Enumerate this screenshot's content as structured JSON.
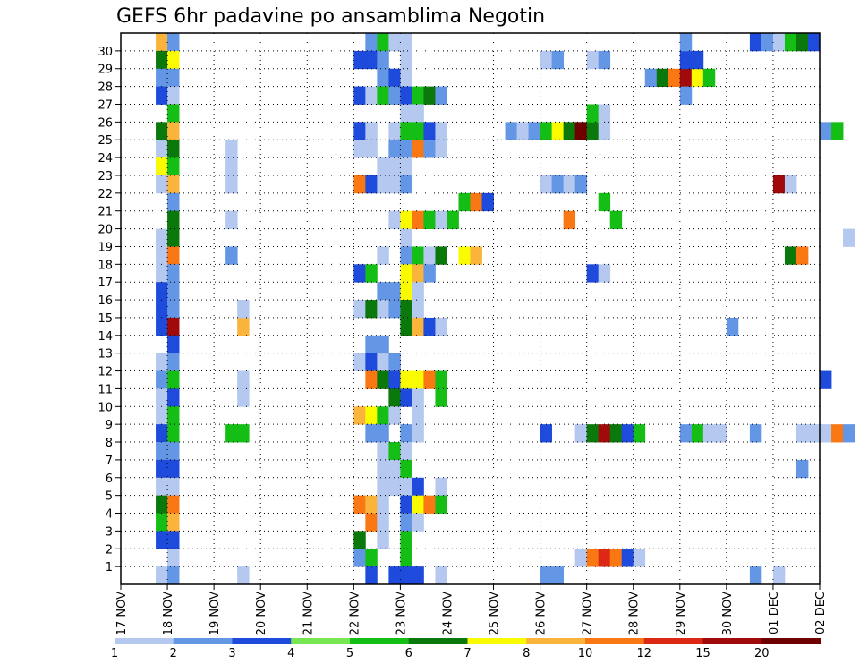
{
  "chart_data": {
    "type": "heatmap",
    "title": "GEFS 6hr padavine po ansamblima Negotin",
    "y_ticks": [
      "1",
      "2",
      "3",
      "4",
      "5",
      "6",
      "7",
      "8",
      "9",
      "10",
      "11",
      "12",
      "13",
      "14",
      "15",
      "16",
      "17",
      "18",
      "19",
      "20",
      "21",
      "22",
      "23",
      "24",
      "25",
      "26",
      "27",
      "28",
      "29",
      "30"
    ],
    "x_ticks": [
      "17 NOV",
      "18 NOV",
      "19 NOV",
      "20 NOV",
      "21 NOV",
      "22 NOV",
      "23 NOV",
      "24 NOV",
      "25 NOV",
      "26 NOV",
      "27 NOV",
      "28 NOV",
      "29 NOV",
      "30 NOV",
      "01 DEC",
      "02 DEC"
    ],
    "time_steps_per_day": 4,
    "ensemble_members": 31,
    "grid": true,
    "colorbar": {
      "labels": [
        "1",
        "2",
        "3",
        "4",
        "5",
        "6",
        "7",
        "8",
        "10",
        "12",
        "15",
        "20"
      ],
      "colors": [
        "#b4c8f0",
        "#6496e6",
        "#1e4bdc",
        "#78e650",
        "#14be14",
        "#0a780a",
        "#fafa00",
        "#fab43c",
        "#fa7814",
        "#dc2814",
        "#a00a0a",
        "#6e0000"
      ]
    },
    "cells": [
      [
        0,
        3,
        30,
        8
      ],
      [
        0,
        4,
        30,
        2
      ],
      [
        0,
        3,
        29,
        6
      ],
      [
        0,
        4,
        29,
        7
      ],
      [
        0,
        3,
        28,
        2
      ],
      [
        0,
        4,
        28,
        2
      ],
      [
        0,
        3,
        27,
        3
      ],
      [
        0,
        4,
        27,
        1
      ],
      [
        0,
        4,
        26,
        5
      ],
      [
        0,
        3,
        25,
        6
      ],
      [
        0,
        4,
        25,
        8
      ],
      [
        0,
        3,
        24,
        1
      ],
      [
        0,
        4,
        24,
        6
      ],
      [
        0,
        3,
        23,
        7
      ],
      [
        0,
        4,
        23,
        5
      ],
      [
        0,
        3,
        22,
        1
      ],
      [
        0,
        4,
        22,
        8
      ],
      [
        0,
        4,
        21,
        2
      ],
      [
        0,
        4,
        20,
        6
      ],
      [
        0,
        3,
        19,
        1
      ],
      [
        0,
        4,
        19,
        6
      ],
      [
        0,
        3,
        18,
        1
      ],
      [
        0,
        4,
        18,
        10
      ],
      [
        0,
        3,
        17,
        1
      ],
      [
        0,
        4,
        17,
        2
      ],
      [
        0,
        3,
        16,
        3
      ],
      [
        0,
        4,
        16,
        2
      ],
      [
        0,
        3,
        15,
        3
      ],
      [
        0,
        4,
        15,
        2
      ],
      [
        0,
        3,
        14,
        3
      ],
      [
        0,
        4,
        14,
        15
      ],
      [
        0,
        4,
        13,
        3
      ],
      [
        0,
        3,
        12,
        1
      ],
      [
        0,
        4,
        12,
        2
      ],
      [
        0,
        3,
        11,
        2
      ],
      [
        0,
        4,
        11,
        5
      ],
      [
        0,
        3,
        10,
        1
      ],
      [
        0,
        4,
        10,
        3
      ],
      [
        0,
        3,
        9,
        1
      ],
      [
        0,
        4,
        9,
        5
      ],
      [
        0,
        3,
        8,
        3
      ],
      [
        0,
        4,
        8,
        5
      ],
      [
        0,
        3,
        7,
        2
      ],
      [
        0,
        4,
        7,
        2
      ],
      [
        0,
        3,
        6,
        3
      ],
      [
        0,
        4,
        6,
        3
      ],
      [
        0,
        3,
        5,
        1
      ],
      [
        0,
        4,
        5,
        1
      ],
      [
        0,
        3,
        4,
        6
      ],
      [
        0,
        4,
        4,
        10
      ],
      [
        0,
        3,
        3,
        5
      ],
      [
        0,
        4,
        3,
        8
      ],
      [
        0,
        3,
        2,
        3
      ],
      [
        0,
        4,
        2,
        3
      ],
      [
        0,
        4,
        1,
        1
      ],
      [
        0,
        3,
        0,
        1
      ],
      [
        0,
        4,
        0,
        2
      ],
      [
        1,
        5,
        8,
        5
      ],
      [
        1,
        6,
        8,
        5
      ],
      [
        1,
        5,
        24,
        1
      ],
      [
        1,
        5,
        23,
        1
      ],
      [
        1,
        5,
        22,
        1
      ],
      [
        1,
        5,
        20,
        1
      ],
      [
        1,
        5,
        18,
        2
      ],
      [
        1,
        6,
        14,
        8
      ],
      [
        1,
        6,
        15,
        1
      ],
      [
        2,
        2,
        0,
        1
      ],
      [
        2,
        2,
        10,
        1
      ],
      [
        2,
        2,
        11,
        1
      ],
      [
        5,
        1,
        30,
        2
      ],
      [
        5,
        2,
        30,
        5
      ],
      [
        5,
        3,
        30,
        1
      ],
      [
        5,
        0,
        29,
        3
      ],
      [
        5,
        1,
        29,
        3
      ],
      [
        5,
        2,
        29,
        2
      ],
      [
        5,
        2,
        28,
        2
      ],
      [
        5,
        3,
        28,
        3
      ],
      [
        5,
        0,
        27,
        3
      ],
      [
        5,
        1,
        27,
        1
      ],
      [
        5,
        2,
        27,
        5
      ],
      [
        5,
        3,
        27,
        2
      ],
      [
        5,
        0,
        25,
        3
      ],
      [
        5,
        1,
        25,
        1
      ],
      [
        5,
        3,
        25,
        1
      ],
      [
        5,
        0,
        24,
        1
      ],
      [
        5,
        1,
        24,
        1
      ],
      [
        5,
        3,
        24,
        2
      ],
      [
        5,
        2,
        23,
        1
      ],
      [
        5,
        3,
        23,
        1
      ],
      [
        5,
        0,
        22,
        10
      ],
      [
        5,
        1,
        22,
        3
      ],
      [
        5,
        2,
        22,
        1
      ],
      [
        5,
        3,
        22,
        1
      ],
      [
        5,
        3,
        20,
        1
      ],
      [
        5,
        2,
        18,
        1
      ],
      [
        5,
        0,
        17,
        3
      ],
      [
        5,
        1,
        17,
        5
      ],
      [
        5,
        2,
        16,
        2
      ],
      [
        5,
        3,
        16,
        2
      ],
      [
        5,
        0,
        15,
        1
      ],
      [
        5,
        1,
        15,
        6
      ],
      [
        5,
        2,
        15,
        1
      ],
      [
        5,
        3,
        15,
        2
      ],
      [
        5,
        1,
        13,
        2
      ],
      [
        5,
        2,
        13,
        2
      ],
      [
        5,
        0,
        12,
        1
      ],
      [
        5,
        1,
        12,
        3
      ],
      [
        5,
        2,
        12,
        1
      ],
      [
        5,
        3,
        12,
        2
      ],
      [
        5,
        1,
        11,
        10
      ],
      [
        5,
        2,
        11,
        6
      ],
      [
        5,
        3,
        11,
        3
      ],
      [
        5,
        3,
        10,
        6
      ],
      [
        5,
        0,
        9,
        8
      ],
      [
        5,
        1,
        9,
        7
      ],
      [
        5,
        2,
        9,
        5
      ],
      [
        5,
        3,
        9,
        1
      ],
      [
        5,
        1,
        8,
        2
      ],
      [
        5,
        2,
        8,
        2
      ],
      [
        5,
        2,
        7,
        1
      ],
      [
        5,
        3,
        7,
        5
      ],
      [
        5,
        2,
        6,
        1
      ],
      [
        5,
        3,
        6,
        1
      ],
      [
        5,
        2,
        5,
        1
      ],
      [
        5,
        3,
        5,
        1
      ],
      [
        5,
        0,
        4,
        10
      ],
      [
        5,
        1,
        4,
        8
      ],
      [
        5,
        2,
        4,
        1
      ],
      [
        5,
        1,
        3,
        10
      ],
      [
        5,
        2,
        3,
        1
      ],
      [
        5,
        0,
        2,
        6
      ],
      [
        5,
        2,
        2,
        1
      ],
      [
        5,
        0,
        1,
        2
      ],
      [
        5,
        1,
        1,
        5
      ],
      [
        5,
        1,
        0,
        3
      ],
      [
        5,
        3,
        0,
        3
      ],
      [
        6,
        0,
        30,
        1
      ],
      [
        6,
        0,
        29,
        1
      ],
      [
        6,
        0,
        28,
        1
      ],
      [
        6,
        0,
        27,
        3
      ],
      [
        6,
        1,
        27,
        5
      ],
      [
        6,
        2,
        27,
        6
      ],
      [
        6,
        3,
        27,
        2
      ],
      [
        6,
        0,
        26,
        1
      ],
      [
        6,
        1,
        26,
        1
      ],
      [
        6,
        0,
        25,
        5
      ],
      [
        6,
        1,
        25,
        5
      ],
      [
        6,
        2,
        25,
        3
      ],
      [
        6,
        3,
        25,
        1
      ],
      [
        6,
        0,
        24,
        2
      ],
      [
        6,
        1,
        24,
        10
      ],
      [
        6,
        2,
        24,
        2
      ],
      [
        6,
        3,
        24,
        1
      ],
      [
        6,
        0,
        23,
        1
      ],
      [
        6,
        0,
        22,
        2
      ],
      [
        6,
        0,
        20,
        7
      ],
      [
        6,
        1,
        20,
        10
      ],
      [
        6,
        2,
        20,
        5
      ],
      [
        6,
        3,
        20,
        1
      ],
      [
        6,
        0,
        19,
        1
      ],
      [
        6,
        0,
        18,
        2
      ],
      [
        6,
        1,
        18,
        5
      ],
      [
        6,
        2,
        18,
        1
      ],
      [
        6,
        3,
        18,
        6
      ],
      [
        6,
        0,
        17,
        7
      ],
      [
        6,
        1,
        17,
        8
      ],
      [
        6,
        2,
        17,
        2
      ],
      [
        6,
        0,
        16,
        7
      ],
      [
        6,
        1,
        16,
        1
      ],
      [
        6,
        0,
        15,
        6
      ],
      [
        6,
        1,
        15,
        1
      ],
      [
        6,
        0,
        14,
        6
      ],
      [
        6,
        1,
        14,
        8
      ],
      [
        6,
        2,
        14,
        3
      ],
      [
        6,
        3,
        14,
        1
      ],
      [
        6,
        0,
        11,
        7
      ],
      [
        6,
        1,
        11,
        7
      ],
      [
        6,
        2,
        11,
        10
      ],
      [
        6,
        3,
        11,
        5
      ],
      [
        6,
        0,
        10,
        3
      ],
      [
        6,
        1,
        10,
        1
      ],
      [
        6,
        3,
        10,
        5
      ],
      [
        6,
        1,
        9,
        1
      ],
      [
        6,
        0,
        8,
        2
      ],
      [
        6,
        1,
        8,
        1
      ],
      [
        6,
        0,
        7,
        1
      ],
      [
        6,
        0,
        6,
        5
      ],
      [
        6,
        0,
        5,
        1
      ],
      [
        6,
        1,
        5,
        3
      ],
      [
        6,
        3,
        5,
        1
      ],
      [
        6,
        0,
        4,
        3
      ],
      [
        6,
        1,
        4,
        7
      ],
      [
        6,
        2,
        4,
        10
      ],
      [
        6,
        3,
        4,
        5
      ],
      [
        6,
        0,
        3,
        2
      ],
      [
        6,
        1,
        3,
        1
      ],
      [
        6,
        0,
        2,
        5
      ],
      [
        6,
        0,
        1,
        5
      ],
      [
        6,
        0,
        0,
        3
      ],
      [
        6,
        1,
        0,
        3
      ],
      [
        6,
        3,
        0,
        1
      ],
      [
        7,
        0,
        20,
        5
      ],
      [
        7,
        1,
        18,
        7
      ],
      [
        7,
        2,
        18,
        8
      ],
      [
        7,
        1,
        21,
        5
      ],
      [
        7,
        2,
        21,
        10
      ],
      [
        7,
        3,
        21,
        3
      ],
      [
        8,
        1,
        25,
        2
      ],
      [
        8,
        2,
        25,
        1
      ],
      [
        8,
        3,
        25,
        2
      ],
      [
        9,
        0,
        25,
        5
      ],
      [
        9,
        1,
        25,
        7
      ],
      [
        9,
        2,
        25,
        6
      ],
      [
        9,
        3,
        25,
        20
      ],
      [
        9,
        0,
        29,
        1
      ],
      [
        9,
        1,
        29,
        2
      ],
      [
        9,
        0,
        22,
        1
      ],
      [
        9,
        1,
        22,
        2
      ],
      [
        9,
        2,
        22,
        1
      ],
      [
        9,
        3,
        22,
        2
      ],
      [
        9,
        2,
        20,
        10
      ],
      [
        9,
        3,
        8,
        1
      ],
      [
        9,
        0,
        8,
        3
      ],
      [
        9,
        3,
        1,
        1
      ],
      [
        9,
        0,
        0,
        2
      ],
      [
        9,
        1,
        0,
        2
      ],
      [
        10,
        0,
        25,
        6
      ],
      [
        10,
        1,
        25,
        1
      ],
      [
        10,
        0,
        29,
        1
      ],
      [
        10,
        1,
        29,
        2
      ],
      [
        10,
        0,
        26,
        5
      ],
      [
        10,
        1,
        26,
        1
      ],
      [
        10,
        2,
        20,
        5
      ],
      [
        10,
        1,
        21,
        5
      ],
      [
        10,
        0,
        17,
        3
      ],
      [
        10,
        1,
        17,
        1
      ],
      [
        10,
        0,
        8,
        6
      ],
      [
        10,
        1,
        8,
        15
      ],
      [
        10,
        2,
        8,
        6
      ],
      [
        10,
        3,
        8,
        3
      ],
      [
        10,
        0,
        1,
        10
      ],
      [
        10,
        1,
        1,
        12
      ],
      [
        10,
        2,
        1,
        10
      ],
      [
        10,
        3,
        1,
        3
      ],
      [
        11,
        0,
        8,
        5
      ],
      [
        11,
        0,
        1,
        1
      ],
      [
        11,
        1,
        28,
        2
      ],
      [
        11,
        2,
        28,
        6
      ],
      [
        11,
        3,
        28,
        10
      ],
      [
        12,
        0,
        28,
        15
      ],
      [
        12,
        1,
        28,
        7
      ],
      [
        12,
        2,
        28,
        5
      ],
      [
        12,
        0,
        29,
        3
      ],
      [
        12,
        1,
        29,
        3
      ],
      [
        12,
        0,
        30,
        2
      ],
      [
        12,
        0,
        27,
        2
      ],
      [
        12,
        0,
        8,
        2
      ],
      [
        12,
        1,
        8,
        5
      ],
      [
        12,
        2,
        8,
        1
      ],
      [
        12,
        3,
        8,
        1
      ],
      [
        13,
        0,
        14,
        2
      ],
      [
        13,
        2,
        30,
        3
      ],
      [
        13,
        3,
        30,
        2
      ],
      [
        13,
        2,
        8,
        2
      ],
      [
        13,
        2,
        0,
        2
      ],
      [
        14,
        0,
        22,
        15
      ],
      [
        14,
        1,
        22,
        1
      ],
      [
        14,
        1,
        18,
        6
      ],
      [
        14,
        2,
        18,
        10
      ],
      [
        14,
        0,
        30,
        1
      ],
      [
        14,
        1,
        30,
        5
      ],
      [
        14,
        2,
        30,
        6
      ],
      [
        14,
        3,
        30,
        3
      ],
      [
        14,
        2,
        6,
        2
      ],
      [
        14,
        2,
        8,
        1
      ],
      [
        14,
        3,
        8,
        1
      ],
      [
        14,
        0,
        0,
        1
      ],
      [
        15,
        0,
        25,
        2
      ],
      [
        15,
        1,
        25,
        5
      ],
      [
        15,
        0,
        8,
        1
      ],
      [
        15,
        1,
        8,
        10
      ],
      [
        15,
        2,
        8,
        2
      ],
      [
        15,
        2,
        19,
        1
      ],
      [
        15,
        0,
        11,
        3
      ]
    ]
  }
}
